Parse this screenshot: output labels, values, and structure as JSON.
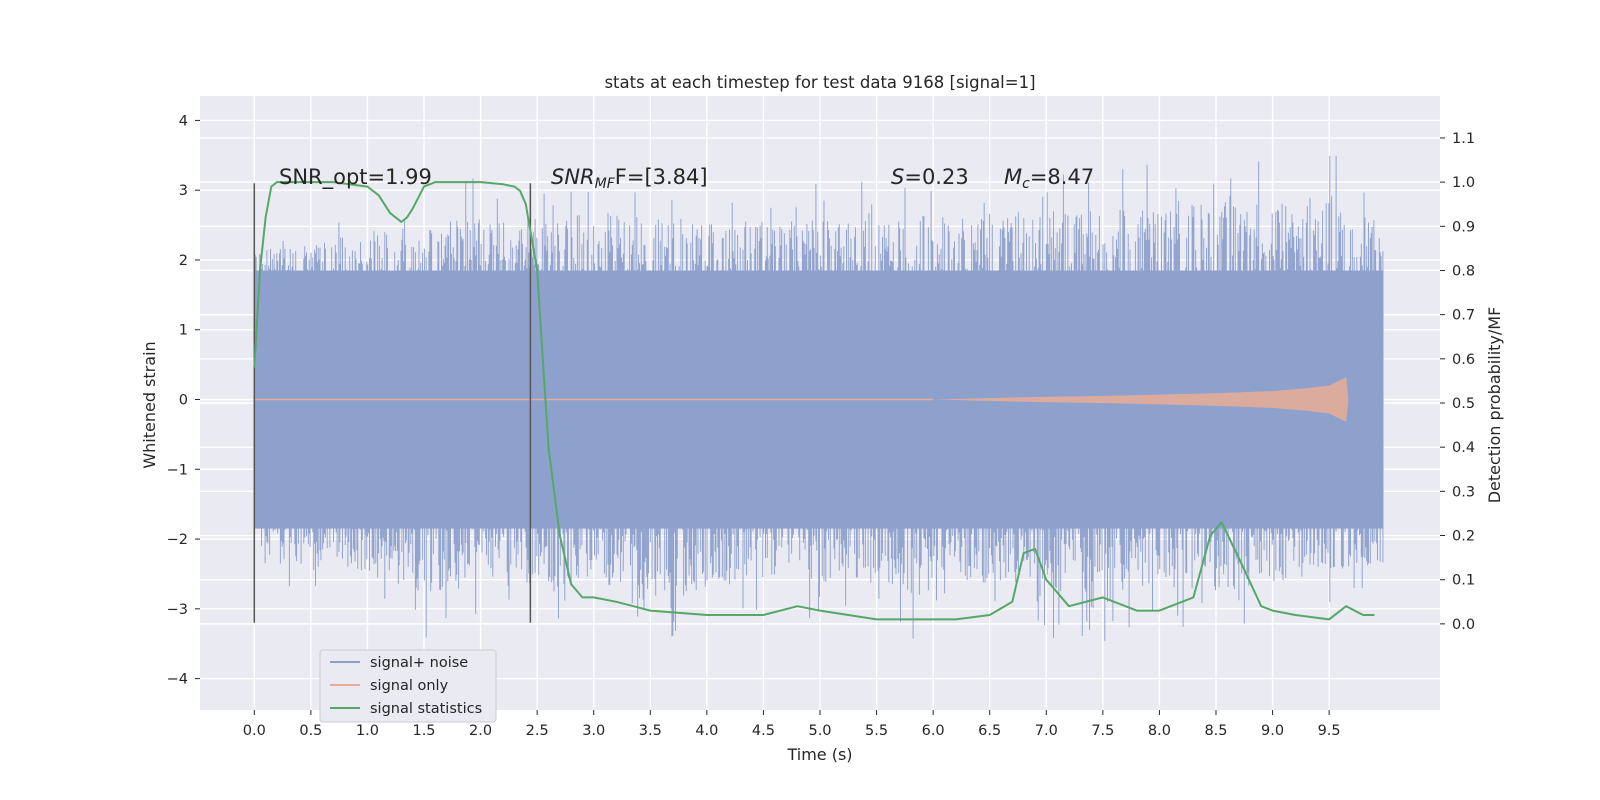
{
  "chart_data": {
    "type": "line",
    "title": "stats at each timestep for test data 9168 [signal=1]",
    "xlabel": "Time (s)",
    "ylabel": "Whitened strain",
    "y2label": "Detection probability/MF",
    "xlim": [
      -0.48,
      10.48
    ],
    "ylim": [
      -4.45,
      4.35
    ],
    "y2lim": [
      -0.195,
      1.195
    ],
    "x_ticks": [
      "0.0",
      "0.5",
      "1.0",
      "1.5",
      "2.0",
      "2.5",
      "3.0",
      "3.5",
      "4.0",
      "4.5",
      "5.0",
      "5.5",
      "6.0",
      "6.5",
      "7.0",
      "7.5",
      "8.0",
      "8.5",
      "9.0",
      "9.5"
    ],
    "y_ticks": [
      "4",
      "3",
      "2",
      "1",
      "0",
      "−1",
      "−2",
      "−3",
      "−4"
    ],
    "y2_ticks": [
      "1.1",
      "1.0",
      "0.9",
      "0.8",
      "0.7",
      "0.6",
      "0.5",
      "0.4",
      "0.3",
      "0.2",
      "0.1",
      "0.0"
    ],
    "grid": true,
    "legend_position": "lower-left",
    "annotations": {
      "snr_opt": "SNR_opt=1.99",
      "snr_mf_name": "SNR",
      "snr_mf_sub": "MF",
      "snr_mf_suffix": "F=[3.84]",
      "s_name": "S",
      "s_value": "=0.23",
      "mc_name": "M",
      "mc_sub": "c",
      "mc_value": "=8.47"
    },
    "vertical_lines": [
      {
        "x": 0.0,
        "y_range": [
          -3.2,
          3.1
        ]
      },
      {
        "x": 2.44,
        "y_range": [
          -3.2,
          3.1
        ]
      }
    ],
    "series": [
      {
        "name": "signal+ noise",
        "color": "#8ea1cc",
        "x_range": [
          0.0,
          9.98
        ],
        "envelope_high": [
          [
            0.0,
            2.5
          ],
          [
            0.5,
            2.6
          ],
          [
            1.0,
            2.9
          ],
          [
            1.5,
            3.0
          ],
          [
            2.0,
            3.2
          ],
          [
            2.5,
            3.0
          ],
          [
            3.0,
            3.3
          ],
          [
            3.5,
            3.2
          ],
          [
            4.0,
            3.1
          ],
          [
            4.5,
            3.0
          ],
          [
            5.0,
            3.2
          ],
          [
            5.5,
            3.1
          ],
          [
            6.0,
            3.2
          ],
          [
            6.5,
            3.3
          ],
          [
            7.0,
            3.3
          ],
          [
            7.5,
            3.3
          ],
          [
            8.0,
            3.4
          ],
          [
            8.5,
            3.5
          ],
          [
            9.0,
            3.4
          ],
          [
            9.5,
            3.7
          ],
          [
            9.98,
            3.0
          ]
        ],
        "envelope_low": [
          [
            0.0,
            -2.5
          ],
          [
            0.5,
            -3.0
          ],
          [
            1.0,
            -3.0
          ],
          [
            1.5,
            -3.5
          ],
          [
            2.0,
            -3.2
          ],
          [
            2.5,
            -3.5
          ],
          [
            3.0,
            -3.2
          ],
          [
            3.5,
            -3.6
          ],
          [
            4.0,
            -3.4
          ],
          [
            4.5,
            -3.0
          ],
          [
            5.0,
            -3.2
          ],
          [
            5.5,
            -3.3
          ],
          [
            6.0,
            -3.5
          ],
          [
            6.5,
            -3.2
          ],
          [
            7.0,
            -3.4
          ],
          [
            7.5,
            -3.6
          ],
          [
            8.0,
            -3.2
          ],
          [
            8.5,
            -3.4
          ],
          [
            9.0,
            -3.2
          ],
          [
            9.5,
            -3.0
          ],
          [
            9.98,
            -2.8
          ]
        ]
      },
      {
        "name": "signal only",
        "color": "#e3ad98",
        "envelope": [
          [
            6.0,
            0.0
          ],
          [
            6.5,
            0.02
          ],
          [
            7.0,
            0.04
          ],
          [
            7.5,
            0.05
          ],
          [
            8.0,
            0.07
          ],
          [
            8.5,
            0.09
          ],
          [
            9.0,
            0.12
          ],
          [
            9.3,
            0.16
          ],
          [
            9.5,
            0.2
          ],
          [
            9.6,
            0.28
          ],
          [
            9.65,
            0.32
          ],
          [
            9.67,
            0.0
          ]
        ]
      },
      {
        "name": "signal statistics",
        "color": "#55a868",
        "axis": "right",
        "x": [
          0.0,
          0.05,
          0.1,
          0.15,
          0.2,
          0.3,
          0.5,
          0.7,
          1.0,
          1.1,
          1.2,
          1.3,
          1.35,
          1.4,
          1.5,
          1.6,
          1.7,
          2.0,
          2.2,
          2.3,
          2.35,
          2.4,
          2.5,
          2.55,
          2.6,
          2.7,
          2.8,
          2.9,
          3.0,
          3.2,
          3.5,
          4.0,
          4.5,
          4.8,
          5.0,
          5.5,
          6.0,
          6.2,
          6.5,
          6.7,
          6.8,
          6.9,
          7.0,
          7.2,
          7.5,
          7.8,
          8.0,
          8.3,
          8.45,
          8.55,
          8.7,
          8.9,
          9.0,
          9.2,
          9.5,
          9.65,
          9.8,
          9.9
        ],
        "y": [
          0.58,
          0.8,
          0.92,
          0.99,
          1.0,
          1.0,
          1.0,
          1.0,
          0.99,
          0.97,
          0.93,
          0.91,
          0.92,
          0.94,
          0.99,
          1.0,
          1.0,
          1.0,
          0.995,
          0.99,
          0.98,
          0.95,
          0.8,
          0.6,
          0.4,
          0.2,
          0.09,
          0.06,
          0.06,
          0.05,
          0.03,
          0.02,
          0.02,
          0.04,
          0.03,
          0.01,
          0.01,
          0.01,
          0.02,
          0.05,
          0.16,
          0.17,
          0.1,
          0.04,
          0.06,
          0.03,
          0.03,
          0.06,
          0.2,
          0.23,
          0.15,
          0.04,
          0.03,
          0.02,
          0.01,
          0.04,
          0.02,
          0.02
        ]
      }
    ]
  }
}
